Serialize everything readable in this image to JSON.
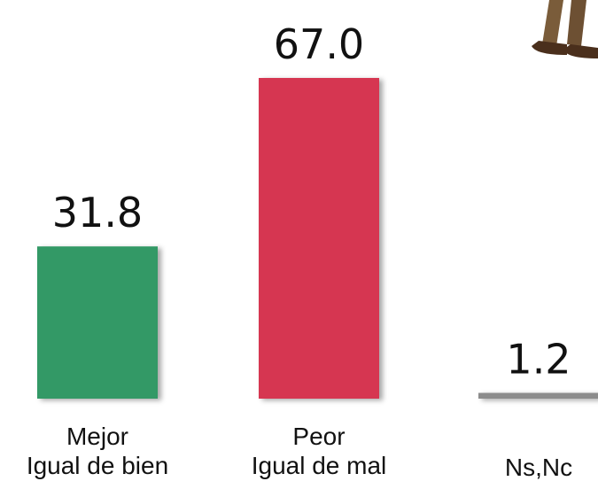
{
  "chart_data": {
    "type": "bar",
    "categories": [
      [
        "Mejor",
        "Igual de bien"
      ],
      [
        "Peor",
        "Igual de mal"
      ],
      [
        "Ns,Nc"
      ]
    ],
    "values": [
      31.8,
      67.0,
      1.2
    ],
    "value_labels": [
      "31.8",
      "67.0",
      "1.2"
    ],
    "colors": [
      "#339966",
      "#d63651",
      "#8c8c8c"
    ]
  }
}
